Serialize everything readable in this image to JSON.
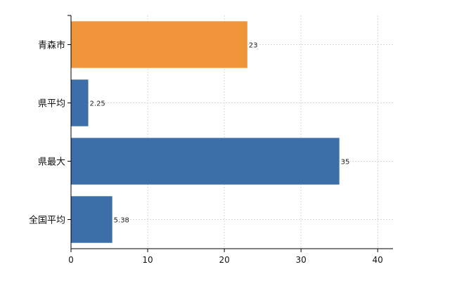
{
  "chart_data": {
    "type": "bar",
    "orientation": "horizontal",
    "categories": [
      "青森市",
      "県平均",
      "県最大",
      "全国平均"
    ],
    "values": [
      23,
      2.25,
      35,
      5.38
    ],
    "value_labels": [
      "23",
      "2.25",
      "35",
      "5.38"
    ],
    "highlight_index": 0,
    "colors": {
      "highlight": "#f0943a",
      "default": "#3c6ea8"
    },
    "xlim": [
      0,
      42
    ],
    "x_ticks": [
      0,
      10,
      20,
      30,
      40
    ],
    "x_tick_labels": [
      "0",
      "10",
      "20",
      "30",
      "40"
    ],
    "grid": true,
    "title": "",
    "xlabel": "",
    "ylabel": ""
  }
}
